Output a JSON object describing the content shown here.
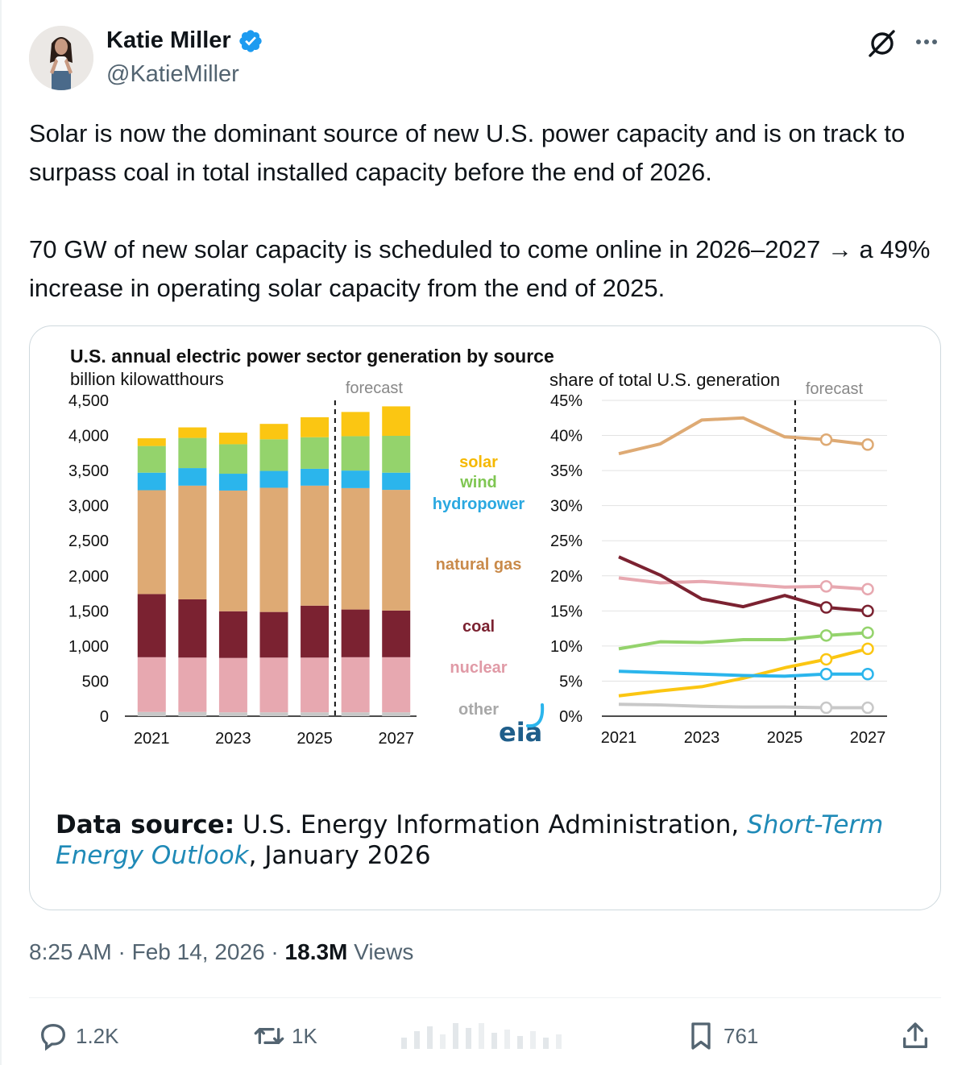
{
  "author": {
    "name": "Katie Miller",
    "handle": "@KatieMiller"
  },
  "tweet": {
    "paragraphs": [
      "Solar is now the dominant source of new U.S. power capacity and is on track to surpass coal in total installed capacity before the end of 2026.",
      "70 GW of new solar capacity is scheduled to come online in 2026–2027 → a 49% increase in operating solar capacity from the end of 2025."
    ]
  },
  "card": {
    "source_label": "Data source:",
    "source_text": " U.S. Energy Information Administration, ",
    "source_link": "Short-Term Energy Outlook",
    "source_suffix": ", January 2026"
  },
  "chart_data": [
    {
      "type": "bar",
      "stacked": true,
      "title": "U.S. annual electric power sector generation by source",
      "ylabel": "billion kilowatthours",
      "annotation": "forecast",
      "ylim": [
        0,
        4500
      ],
      "yticks": [
        "0",
        "500",
        "1,000",
        "1,500",
        "2,000",
        "2,500",
        "3,000",
        "3,500",
        "4,000",
        "4,500"
      ],
      "ytick_values": [
        0,
        500,
        1000,
        1500,
        2000,
        2500,
        3000,
        3500,
        4000,
        4500
      ],
      "categories": [
        "2021",
        "2022",
        "2023",
        "2024",
        "2025",
        "2026",
        "2027"
      ],
      "xtick_labels": [
        "2021",
        "2023",
        "2025",
        "2027"
      ],
      "series": [
        {
          "name": "other",
          "color": "#c8c8c8",
          "values": [
            60,
            60,
            55,
            55,
            55,
            55,
            55
          ]
        },
        {
          "name": "nuclear",
          "color": "#e7a8b0",
          "values": [
            780,
            775,
            775,
            780,
            780,
            785,
            785
          ]
        },
        {
          "name": "coal",
          "color": "#7b2231",
          "values": [
            900,
            830,
            665,
            650,
            740,
            680,
            665
          ]
        },
        {
          "name": "natural gas",
          "color": "#deaa74",
          "values": [
            1480,
            1620,
            1720,
            1770,
            1710,
            1730,
            1720
          ]
        },
        {
          "name": "hydropower",
          "color": "#2bb5ec",
          "values": [
            250,
            250,
            240,
            240,
            240,
            250,
            245
          ]
        },
        {
          "name": "wind",
          "color": "#94d36c",
          "values": [
            380,
            430,
            420,
            450,
            450,
            490,
            525
          ]
        },
        {
          "name": "solar",
          "color": "#fbc612",
          "values": [
            110,
            150,
            165,
            220,
            285,
            345,
            420
          ]
        }
      ],
      "legend": [
        "solar",
        "wind",
        "hydropower",
        "natural gas",
        "coal",
        "nuclear",
        "other"
      ],
      "logo": "eia"
    },
    {
      "type": "line",
      "ylabel": "share of total U.S. generation",
      "annotation": "forecast",
      "ylim": [
        0,
        45
      ],
      "yticks": [
        "0%",
        "5%",
        "10%",
        "15%",
        "20%",
        "25%",
        "30%",
        "35%",
        "40%",
        "45%"
      ],
      "ytick_values": [
        0,
        5,
        10,
        15,
        20,
        25,
        30,
        35,
        40,
        45
      ],
      "x": [
        2021,
        2022,
        2023,
        2024,
        2025,
        2026,
        2027
      ],
      "xtick_labels": [
        "2021",
        "2023",
        "2025",
        "2027"
      ],
      "forecast_start_index": 5,
      "series": [
        {
          "name": "natural gas",
          "color": "#deaa74",
          "values": [
            37.4,
            38.8,
            42.2,
            42.5,
            39.8,
            39.4,
            38.7
          ]
        },
        {
          "name": "nuclear",
          "color": "#e7a8b0",
          "values": [
            19.7,
            19.0,
            19.2,
            18.8,
            18.4,
            18.5,
            18.1
          ]
        },
        {
          "name": "coal",
          "color": "#7b2231",
          "values": [
            22.7,
            20.1,
            16.7,
            15.6,
            17.2,
            15.5,
            15.0
          ]
        },
        {
          "name": "wind",
          "color": "#94d36c",
          "values": [
            9.6,
            10.6,
            10.5,
            10.9,
            10.9,
            11.5,
            11.9
          ]
        },
        {
          "name": "solar",
          "color": "#fbc612",
          "values": [
            2.9,
            3.6,
            4.2,
            5.4,
            6.9,
            8.1,
            9.6
          ]
        },
        {
          "name": "hydropower",
          "color": "#2bb5ec",
          "values": [
            6.4,
            6.2,
            6.0,
            5.8,
            5.7,
            6.0,
            6.0
          ]
        },
        {
          "name": "other",
          "color": "#c8c8c8",
          "values": [
            1.7,
            1.6,
            1.4,
            1.3,
            1.3,
            1.2,
            1.2
          ]
        }
      ]
    }
  ],
  "meta": {
    "time": "8:25 AM",
    "separator": " · ",
    "date": "Feb 14, 2026",
    "views_count": "18.3M",
    "views_label": " Views"
  },
  "actions": {
    "replies": "1.2K",
    "reposts": "1K",
    "bookmarks": "761"
  },
  "icons": [
    "verified-badge-icon",
    "grok-icon",
    "more-icon",
    "reply-icon",
    "repost-icon",
    "views-icon",
    "bookmark-icon",
    "share-icon"
  ]
}
